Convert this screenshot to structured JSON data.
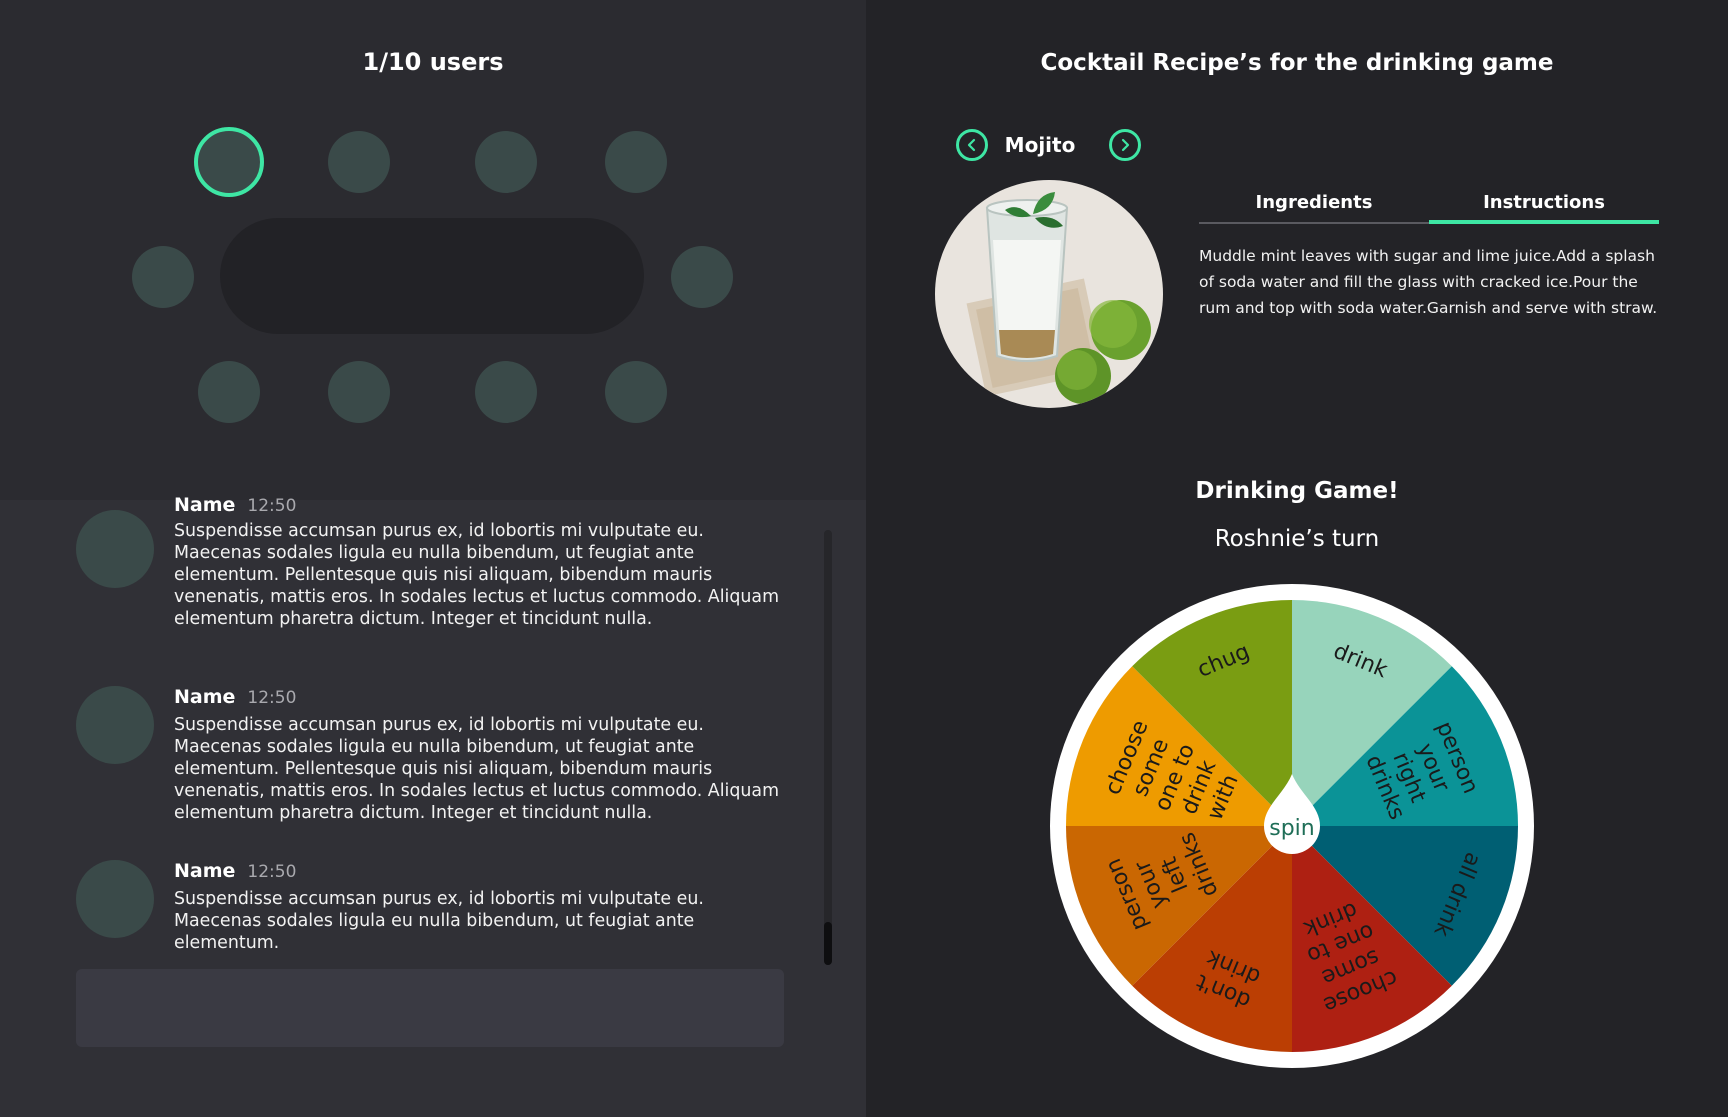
{
  "left": {
    "users_title": "1/10 users"
  },
  "chat": {
    "messages": [
      {
        "name": "Name",
        "time": "12:50",
        "text": "Suspendisse accumsan purus ex, id lobortis mi vulputate eu. Maecenas sodales ligula eu nulla bibendum, ut feugiat ante elementum. Pellentesque quis nisi aliquam, bibendum mauris venenatis, mattis eros. In sodales lectus et luctus commodo. Aliquam elementum pharetra dictum. Integer et tincidunt nulla."
      },
      {
        "name": "Name",
        "time": "12:50",
        "text": "Suspendisse accumsan purus ex, id lobortis mi vulputate eu. Maecenas sodales ligula eu nulla bibendum, ut feugiat ante elementum. Pellentesque quis nisi aliquam, bibendum mauris venenatis, mattis eros. In sodales lectus et luctus commodo. Aliquam elementum pharetra dictum. Integer et tincidunt nulla."
      },
      {
        "name": "Name",
        "time": "12:50",
        "text": "Suspendisse accumsan purus ex, id lobortis mi vulputate eu. Maecenas sodales ligula eu nulla bibendum, ut feugiat ante elementum."
      }
    ],
    "input_value": ""
  },
  "recipe": {
    "title": "Cocktail Recipe’s for the drinking game",
    "drink_name": "Mojito",
    "tabs": [
      "Ingredients",
      "Instructions"
    ],
    "active_tab": "Instructions",
    "instructions": "Muddle mint leaves with sugar and lime juice.Add a splash of soda water and fill the glass with cracked ice.Pour the rum and top with soda water.Garnish and serve with straw."
  },
  "game": {
    "title": "Drinking Game!",
    "turn": "Roshnie’s turn",
    "spin_label": "spin",
    "segments": [
      {
        "label": [
          "drink"
        ],
        "color": "#97d4bb"
      },
      {
        "label": [
          "person",
          "your",
          "right",
          "drinks"
        ],
        "color": "#0b9397"
      },
      {
        "label": [
          "all drink"
        ],
        "color": "#005f73"
      },
      {
        "label": [
          "choose",
          "some",
          "one to",
          "drink"
        ],
        "color": "#ae2012"
      },
      {
        "label": [
          "don't",
          "drink"
        ],
        "color": "#bb3e03"
      },
      {
        "label": [
          "person",
          "your",
          "left",
          "drinks"
        ],
        "color": "#ca6702"
      },
      {
        "label": [
          "choose",
          "some",
          "one to",
          "drink",
          "with"
        ],
        "color": "#ee9b00"
      },
      {
        "label": [
          "chug"
        ],
        "color": "#7a9d12"
      }
    ],
    "colors": {
      "accent": "#3ee6a4",
      "spin_text": "#1f6e57"
    }
  }
}
